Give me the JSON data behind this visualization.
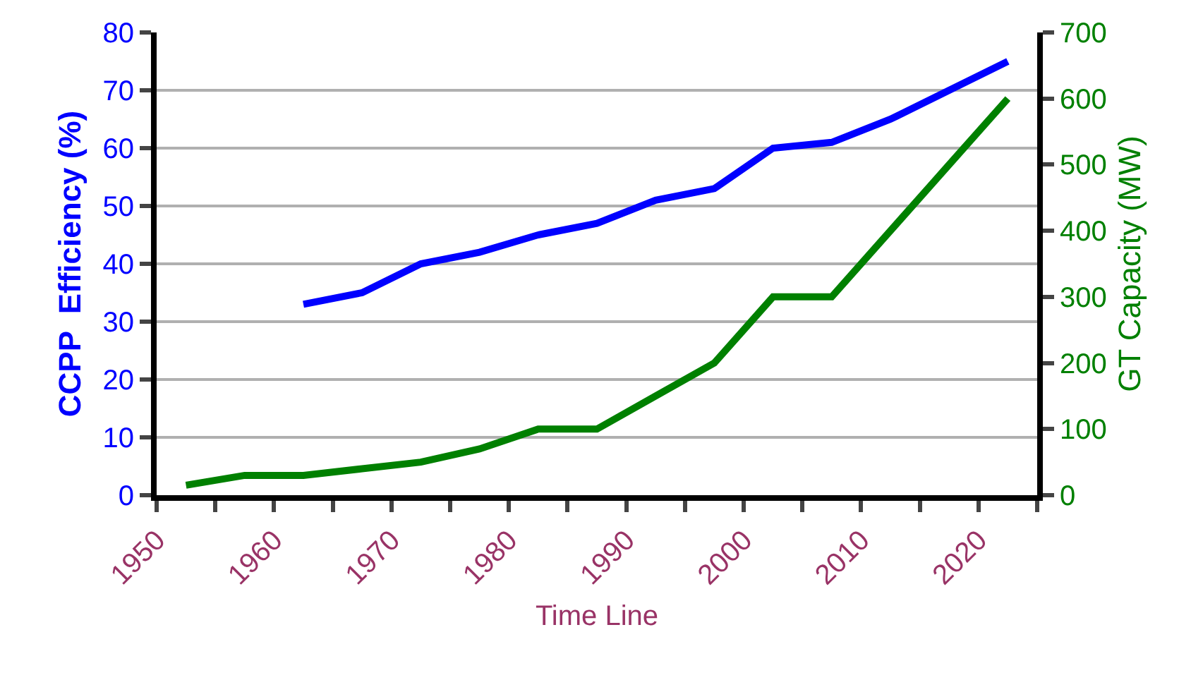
{
  "chart_data": {
    "type": "line",
    "xlabel": "Time Line",
    "ylabel": "CCPP  Efficiency (%)",
    "y2label": "GT Capacity (MW)",
    "x": [
      1952.5,
      1957.5,
      1962.5,
      1967.5,
      1972.5,
      1977.5,
      1982.5,
      1987.5,
      1992.5,
      1997.5,
      2002.5,
      2007.5,
      2012.5,
      2017.5,
      2022.5
    ],
    "series": [
      {
        "name": null,
        "color": "#0000ff",
        "values": [
          null,
          null,
          33,
          35,
          40,
          42,
          45,
          47,
          51,
          53,
          60,
          61,
          65,
          70,
          75
        ]
      },
      {
        "name": null,
        "color": "#008000",
        "axis": "y2",
        "values": [
          15,
          30,
          30,
          40,
          50,
          70,
          100,
          100,
          150,
          200,
          300,
          300,
          400,
          500,
          600
        ]
      }
    ],
    "xlim": [
      1950,
      2025
    ],
    "xticks": [
      1950,
      {
        "value": 1955,
        "label": null
      },
      1960,
      {
        "value": 1965,
        "label": null
      },
      1970,
      {
        "value": 1975,
        "label": null
      },
      1980,
      {
        "value": 1985,
        "label": null
      },
      1990,
      {
        "value": 1995,
        "label": null
      },
      2000,
      {
        "value": 2005,
        "label": null
      },
      2010,
      {
        "value": 2015,
        "label": null
      },
      2020,
      {
        "value": 2025,
        "label": null
      }
    ],
    "ylim": [
      0,
      80
    ],
    "yticks": [
      0,
      10,
      20,
      30,
      40,
      50,
      60,
      70,
      80
    ],
    "y2lim": [
      0,
      700
    ],
    "y2ticks": [
      0,
      100,
      200,
      300,
      400,
      500,
      600,
      700
    ],
    "grid": "y",
    "marker": "none",
    "line_style": "solid"
  }
}
